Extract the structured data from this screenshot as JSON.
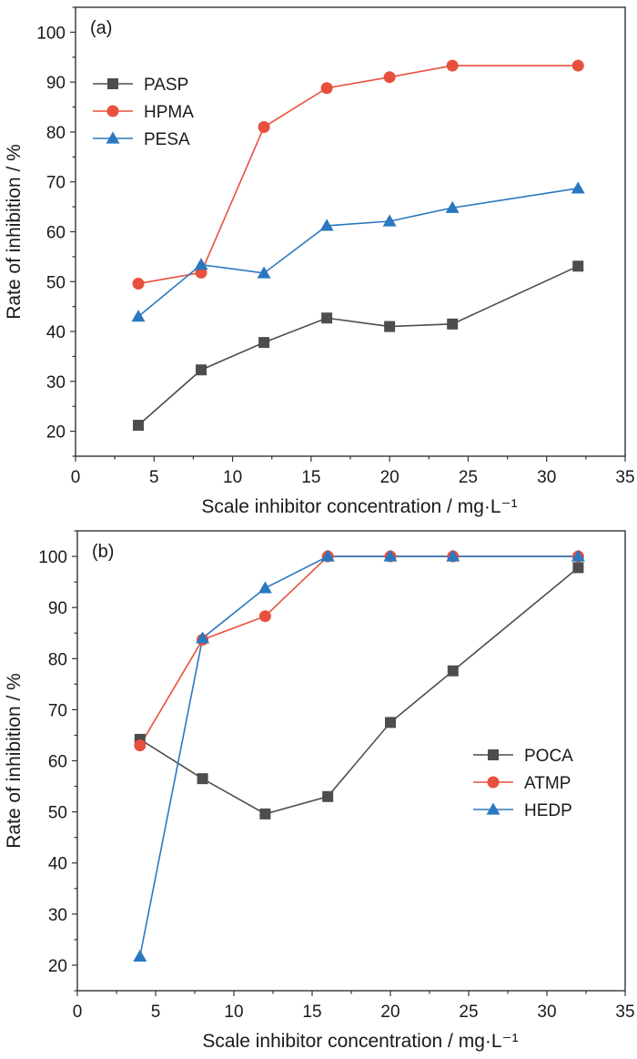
{
  "chart_data": [
    {
      "type": "line",
      "panel_label": "(a)",
      "xlabel": "Scale inhibitor concentration / mg·L⁻¹",
      "ylabel": "Rate of inhibition / %",
      "xlim": [
        0,
        35
      ],
      "ylim": [
        15,
        105
      ],
      "xticks": [
        0,
        5,
        10,
        15,
        20,
        25,
        30,
        35
      ],
      "yticks": [
        20,
        30,
        40,
        50,
        60,
        70,
        80,
        90,
        100
      ],
      "legend_position": "top-left",
      "grid": false,
      "x": [
        4,
        8,
        12,
        16,
        20,
        24,
        32
      ],
      "series": [
        {
          "name": "PASP",
          "marker": "square",
          "color": "#4d4d4d",
          "values": [
            21.2,
            32.3,
            37.8,
            42.7,
            41.0,
            41.5,
            53.1
          ]
        },
        {
          "name": "HPMA",
          "marker": "circle",
          "color": "#e8503e",
          "values": [
            49.6,
            51.8,
            81.0,
            88.8,
            91.0,
            93.3,
            93.3
          ]
        },
        {
          "name": "PESA",
          "marker": "triangle",
          "color": "#2a78c0",
          "values": [
            43.0,
            53.4,
            51.7,
            61.2,
            62.1,
            64.8,
            68.7
          ]
        }
      ]
    },
    {
      "type": "line",
      "panel_label": "(b)",
      "xlabel": "Scale inhibitor concentration / mg·L⁻¹",
      "ylabel": "Rate of inhibition / %",
      "xlim": [
        0,
        35
      ],
      "ylim": [
        15,
        105
      ],
      "xticks": [
        0,
        5,
        10,
        15,
        20,
        25,
        30,
        35
      ],
      "yticks": [
        20,
        30,
        40,
        50,
        60,
        70,
        80,
        90,
        100
      ],
      "legend_position": "center-right",
      "grid": false,
      "x": [
        4,
        8,
        12,
        16,
        20,
        24,
        32
      ],
      "series": [
        {
          "name": "POCA",
          "marker": "square",
          "color": "#4d4d4d",
          "values": [
            64.2,
            56.5,
            49.6,
            53.0,
            67.5,
            77.6,
            97.8
          ]
        },
        {
          "name": "ATMP",
          "marker": "circle",
          "color": "#e8503e",
          "values": [
            63.0,
            83.7,
            88.3,
            100.0,
            100.0,
            100.0,
            100.0
          ]
        },
        {
          "name": "HEDP",
          "marker": "triangle",
          "color": "#2a78c0",
          "values": [
            21.7,
            84.0,
            93.8,
            100.0,
            100.0,
            100.0,
            100.0
          ]
        }
      ]
    }
  ]
}
